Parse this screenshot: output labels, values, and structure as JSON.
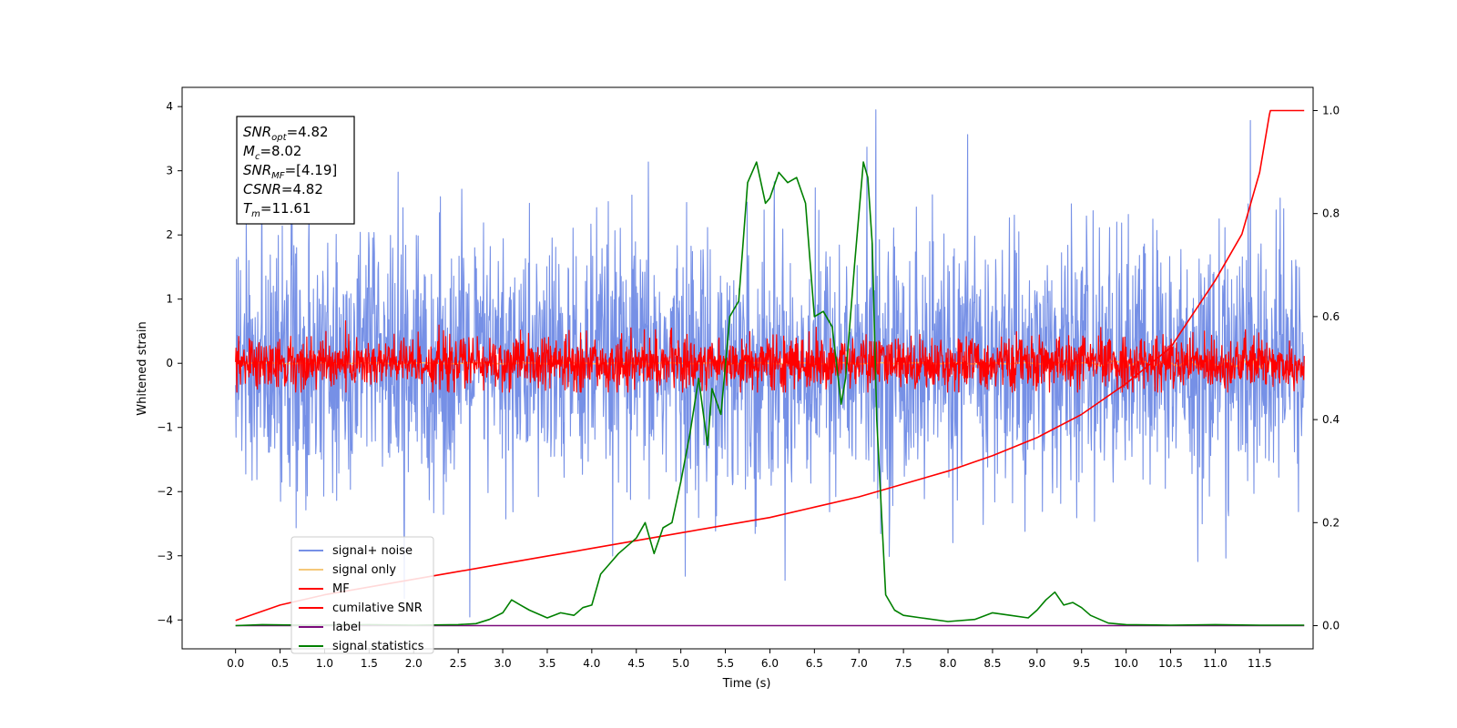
{
  "chart_data": {
    "type": "line",
    "xlabel": "Time (s)",
    "ylabel": "Whitened strain",
    "xlim": [
      -0.6,
      12.1
    ],
    "ylim": [
      -4.45,
      4.3
    ],
    "y2lim": [
      -0.045,
      1.045
    ],
    "grid": false,
    "legend_position": "lower-left",
    "x_ticks": [
      "0.0",
      "0.5",
      "1.0",
      "1.5",
      "2.0",
      "2.5",
      "3.0",
      "3.5",
      "4.0",
      "4.5",
      "5.0",
      "5.5",
      "6.0",
      "6.5",
      "7.0",
      "7.5",
      "8.0",
      "8.5",
      "9.0",
      "9.5",
      "10.0",
      "10.5",
      "11.0",
      "11.5"
    ],
    "x_tick_values": [
      0,
      0.5,
      1,
      1.5,
      2,
      2.5,
      3,
      3.5,
      4,
      4.5,
      5,
      5.5,
      6,
      6.5,
      7,
      7.5,
      8,
      8.5,
      9,
      9.5,
      10,
      10.5,
      11,
      11.5
    ],
    "y_ticks": [
      "4",
      "3",
      "2",
      "1",
      "0",
      "−1",
      "−2",
      "−3",
      "−4"
    ],
    "y_tick_values": [
      4,
      3,
      2,
      1,
      0,
      -1,
      -2,
      -3,
      -4
    ],
    "y2_ticks": [
      "0.0",
      "0.2",
      "0.4",
      "0.6",
      "0.8",
      "1.0"
    ],
    "y2_tick_values": [
      0,
      0.2,
      0.4,
      0.6,
      0.8,
      1.0
    ],
    "annotation_lines": [
      {
        "base": "SNR",
        "sub": "opt",
        "value": "=4.82"
      },
      {
        "base": "M",
        "sub": "c",
        "value": "=8.02"
      },
      {
        "base": "SNR",
        "sub": "MF",
        "value": "=[4.19]"
      },
      {
        "base": "CSNR",
        "sub": "",
        "value": "=4.82"
      },
      {
        "base": "T",
        "sub": "m",
        "value": "=11.61"
      }
    ],
    "series": [
      {
        "name": "signal+ noise",
        "color": "#7690e6",
        "axis": "left",
        "kind": "noise",
        "time_range": [
          0,
          12.0
        ],
        "amplitude_std": 1.0,
        "y_range_approx": [
          -4.15,
          3.95
        ]
      },
      {
        "name": "signal only",
        "color": "#f5c87a",
        "axis": "left",
        "kind": "chirp",
        "time_range": [
          0,
          11.61
        ],
        "y_range_approx": [
          -0.6,
          0.65
        ]
      },
      {
        "name": "MF",
        "color": "#ff0000",
        "axis": "left",
        "kind": "noise",
        "time_range": [
          0,
          12.0
        ],
        "amplitude_std": 0.2,
        "y_range_approx": [
          -0.45,
          1.0
        ]
      },
      {
        "name": "cumilative SNR",
        "color": "#ff0000",
        "axis": "right",
        "x": [
          0,
          0.5,
          1,
          1.5,
          2,
          2.5,
          3,
          3.5,
          4,
          4.5,
          5,
          5.5,
          6,
          6.5,
          7,
          7.5,
          8,
          8.5,
          9,
          9.5,
          10,
          10.5,
          11,
          11.3,
          11.5,
          11.61,
          11.62,
          12.0
        ],
        "y": [
          0.01,
          0.04,
          0.06,
          0.075,
          0.09,
          0.105,
          0.12,
          0.135,
          0.15,
          0.165,
          0.18,
          0.195,
          0.21,
          0.23,
          0.25,
          0.275,
          0.3,
          0.33,
          0.365,
          0.41,
          0.47,
          0.54,
          0.67,
          0.76,
          0.88,
          0.993,
          1.0,
          1.0
        ]
      },
      {
        "name": "label",
        "color": "#7b0a7b",
        "axis": "right",
        "x": [
          0,
          12.0
        ],
        "y": [
          0,
          0
        ]
      },
      {
        "name": "signal statistics",
        "color": "#008000",
        "axis": "right",
        "x": [
          0,
          0.3,
          0.8,
          1.5,
          2.0,
          2.5,
          2.7,
          2.85,
          3.0,
          3.1,
          3.2,
          3.3,
          3.5,
          3.65,
          3.8,
          3.9,
          4.0,
          4.1,
          4.2,
          4.3,
          4.4,
          4.5,
          4.6,
          4.7,
          4.8,
          4.9,
          5.0,
          5.1,
          5.2,
          5.3,
          5.35,
          5.45,
          5.55,
          5.65,
          5.75,
          5.85,
          5.95,
          6.0,
          6.1,
          6.2,
          6.3,
          6.4,
          6.5,
          6.6,
          6.7,
          6.8,
          6.85,
          6.95,
          7.05,
          7.1,
          7.15,
          7.2,
          7.3,
          7.4,
          7.5,
          7.7,
          8.0,
          8.3,
          8.5,
          8.7,
          8.9,
          9.0,
          9.1,
          9.2,
          9.3,
          9.4,
          9.5,
          9.6,
          9.8,
          10.0,
          10.5,
          11.0,
          11.5,
          12.0
        ],
        "y": [
          0,
          0.002,
          0.001,
          0.002,
          0.001,
          0.002,
          0.004,
          0.012,
          0.025,
          0.05,
          0.04,
          0.03,
          0.015,
          0.025,
          0.02,
          0.035,
          0.04,
          0.1,
          0.12,
          0.14,
          0.155,
          0.17,
          0.2,
          0.14,
          0.19,
          0.2,
          0.28,
          0.37,
          0.48,
          0.35,
          0.46,
          0.41,
          0.6,
          0.63,
          0.86,
          0.9,
          0.82,
          0.83,
          0.88,
          0.86,
          0.87,
          0.82,
          0.6,
          0.61,
          0.58,
          0.43,
          0.48,
          0.7,
          0.9,
          0.87,
          0.74,
          0.4,
          0.06,
          0.03,
          0.02,
          0.015,
          0.008,
          0.012,
          0.025,
          0.02,
          0.015,
          0.03,
          0.05,
          0.065,
          0.04,
          0.045,
          0.035,
          0.02,
          0.005,
          0.002,
          0.001,
          0.002,
          0.001,
          0.001
        ]
      }
    ]
  }
}
